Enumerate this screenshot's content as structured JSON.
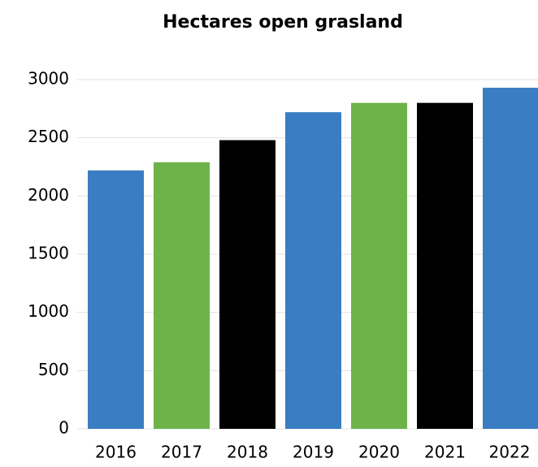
{
  "chart_data": {
    "type": "bar",
    "title": "Hectares open grasland",
    "categories": [
      "2016",
      "2017",
      "2018",
      "2019",
      "2020",
      "2021",
      "2022"
    ],
    "values": [
      2220,
      2290,
      2480,
      2720,
      2800,
      2800,
      2930
    ],
    "colors": [
      "#3a7dc2",
      "#6db34a",
      "#000000",
      "#3a7dc2",
      "#6db34a",
      "#000000",
      "#3a7dc2"
    ],
    "ylim": [
      0,
      3000
    ],
    "yticks": [
      0,
      500,
      1000,
      1500,
      2000,
      2500,
      3000
    ],
    "grid": true
  }
}
